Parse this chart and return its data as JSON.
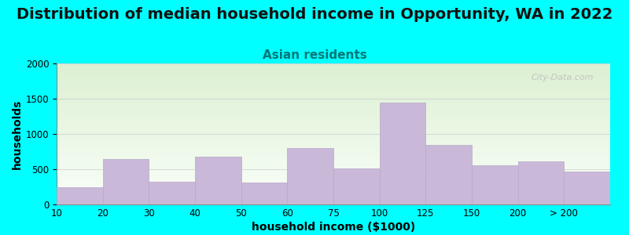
{
  "title": "Distribution of median household income in Opportunity, WA in 2022",
  "subtitle": "Asian residents",
  "xlabel": "household income ($1000)",
  "ylabel": "households",
  "background_color": "#00FFFF",
  "bar_color": "#c9b8d8",
  "bar_edge_color": "#b8a8c8",
  "categories": [
    "10",
    "20",
    "30",
    "40",
    "50",
    "60",
    "75",
    "100",
    "125",
    "150",
    "200",
    "> 200"
  ],
  "values": [
    250,
    640,
    320,
    680,
    310,
    800,
    510,
    1440,
    840,
    560,
    610,
    470
  ],
  "ylim": [
    0,
    2000
  ],
  "yticks": [
    0,
    500,
    1000,
    1500,
    2000
  ],
  "title_fontsize": 14,
  "subtitle_fontsize": 11,
  "axis_label_fontsize": 10,
  "tick_fontsize": 8.5,
  "watermark_text": "City-Data.com"
}
